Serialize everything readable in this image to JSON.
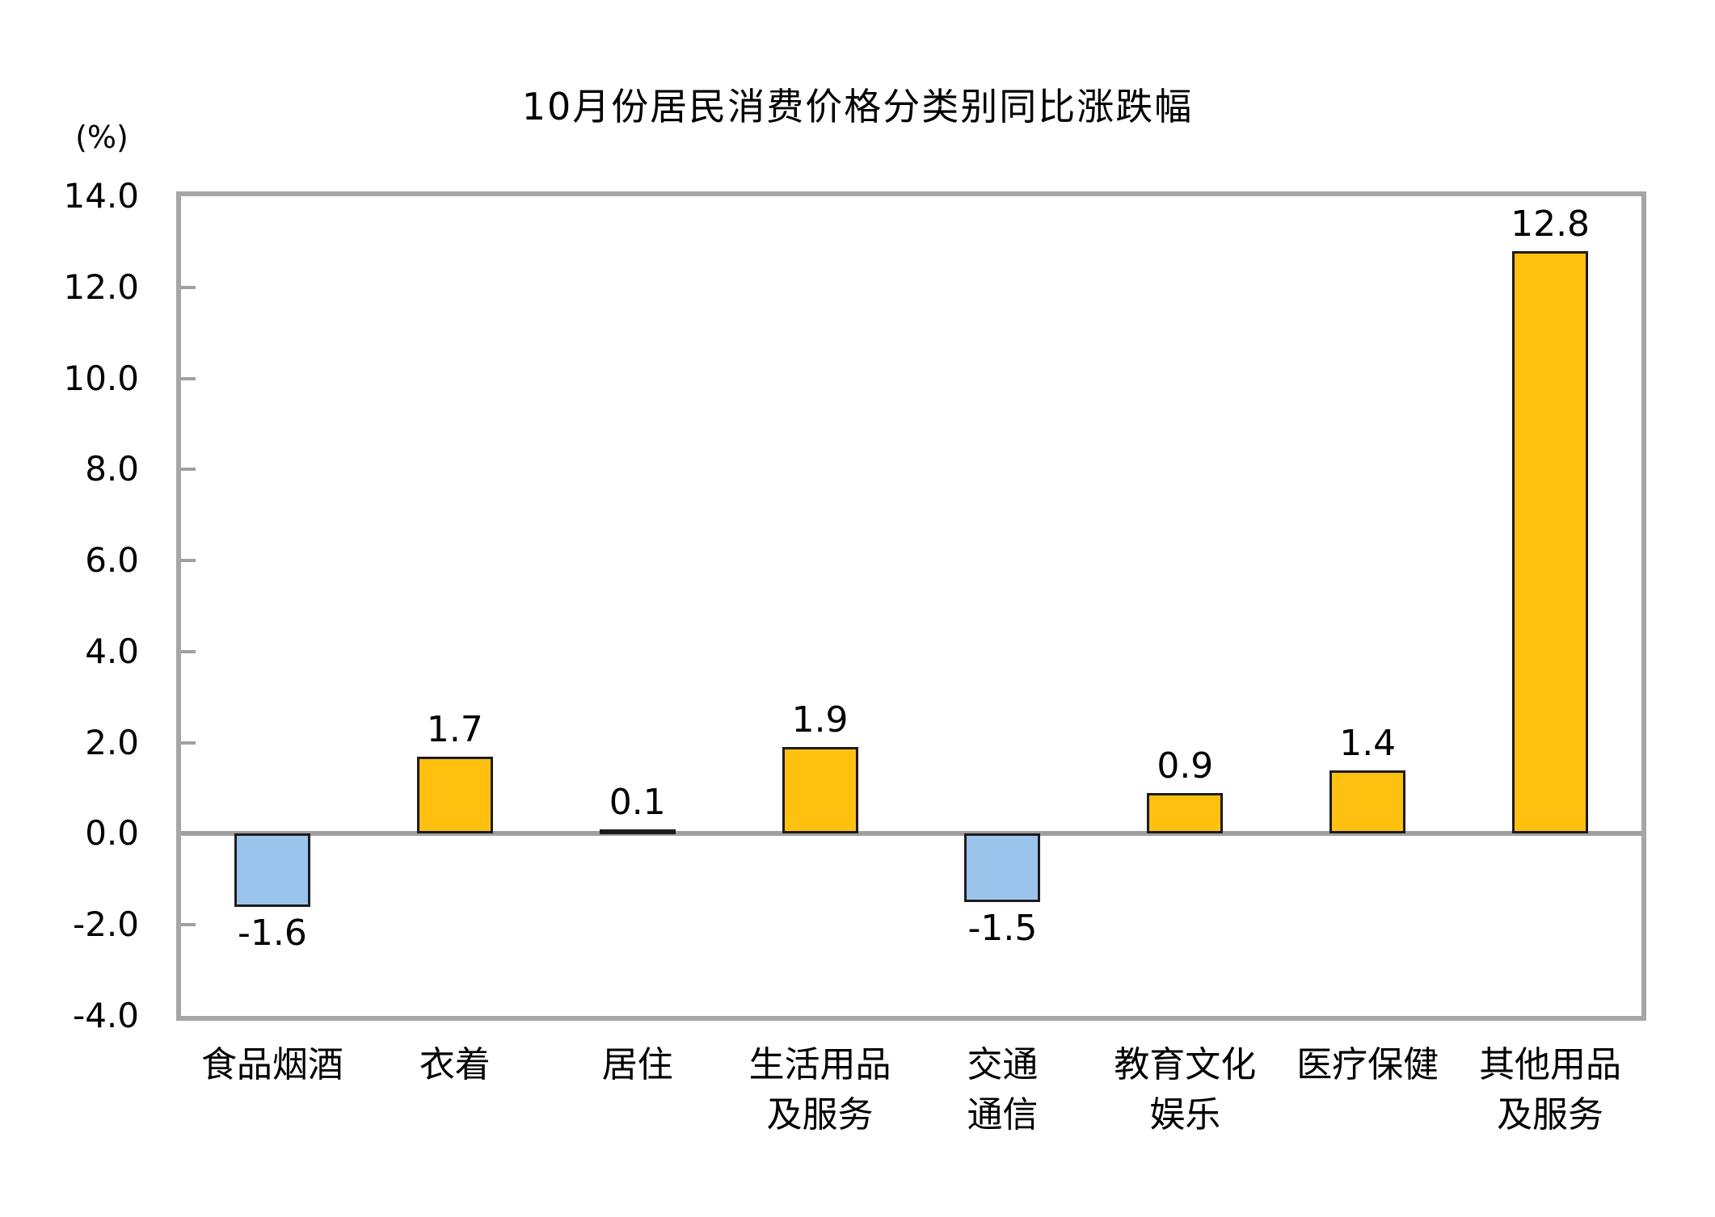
{
  "chart_data": {
    "type": "bar",
    "title": "10月份居民消费价格分类别同比涨跌幅",
    "unit_label": "(%)",
    "categories": [
      {
        "label": "食品烟酒",
        "lines": [
          "食品烟酒"
        ]
      },
      {
        "label": "衣着",
        "lines": [
          "衣着"
        ]
      },
      {
        "label": "居住",
        "lines": [
          "居住"
        ]
      },
      {
        "label": "生活用品及服务",
        "lines": [
          "生活用品",
          "及服务"
        ]
      },
      {
        "label": "交通通信",
        "lines": [
          "交通",
          "通信"
        ]
      },
      {
        "label": "教育文化娱乐",
        "lines": [
          "教育文化",
          "娱乐"
        ]
      },
      {
        "label": "医疗保健",
        "lines": [
          "医疗保健"
        ]
      },
      {
        "label": "其他用品及服务",
        "lines": [
          "其他用品",
          "及服务"
        ]
      }
    ],
    "values": [
      -1.6,
      1.7,
      0.1,
      1.9,
      -1.5,
      0.9,
      1.4,
      12.8
    ],
    "value_labels": [
      "-1.6",
      "1.7",
      "0.1",
      "1.9",
      "-1.5",
      "0.9",
      "1.4",
      "12.8"
    ],
    "ylim": [
      -4.0,
      14.0
    ],
    "ytick_step": 2.0,
    "ytick_labels": [
      "14.0",
      "12.0",
      "10.0",
      "8.0",
      "6.0",
      "4.0",
      "2.0",
      "0.0",
      "-2.0",
      "-4.0"
    ],
    "grid": false,
    "legend": "none",
    "colors": {
      "positive_bar": "#FFC010",
      "negative_bar": "#9AC4EC",
      "bar_border": "#1C1C1C",
      "axis_frame": "#A6A6A6",
      "zero_line": "#A0A0A0",
      "text": "#000000",
      "background": "#FFFFFF"
    }
  }
}
